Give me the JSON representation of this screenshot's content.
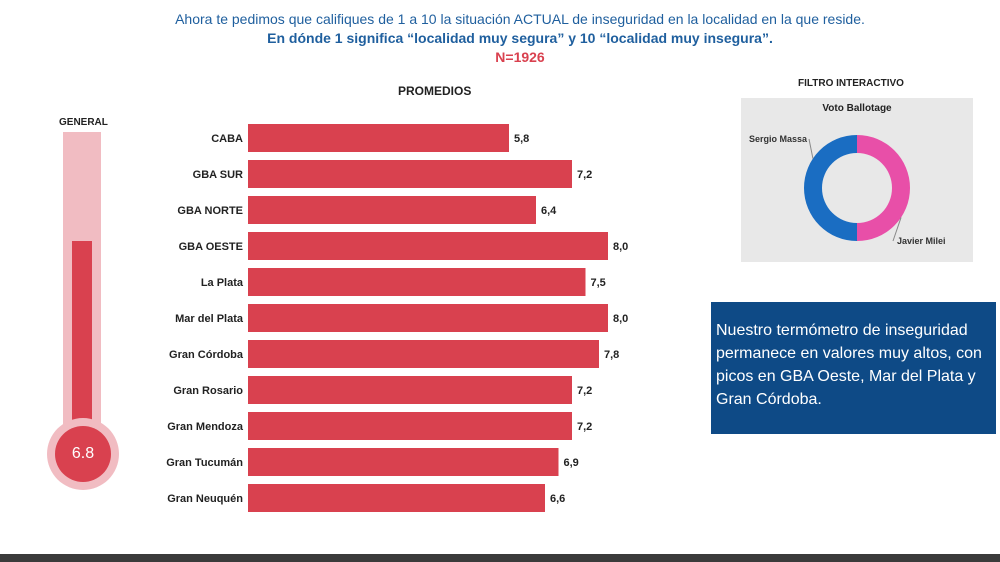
{
  "question": {
    "line_a": "Ahora te pedimos que califiques de 1 a 10 la situación ACTUAL de inseguridad en la localidad en la que reside.",
    "line_b": "En dónde 1 significa “localidad muy segura” y 10 “localidad muy insegura”.",
    "sample": "N=1926"
  },
  "colors": {
    "bar": "#d9414f",
    "thermo_light": "#f1bcc2",
    "massa": "#1a6dc2",
    "milei": "#e84fa8",
    "callout_bg": "#0e4a86"
  },
  "thermometer": {
    "title": "GENERAL",
    "value": 6.8,
    "value_label": "6.8",
    "scale_max": 10
  },
  "chart_data": {
    "type": "bar",
    "orientation": "horizontal",
    "title": "PROMEDIOS",
    "categories": [
      "CABA",
      "GBA SUR",
      "GBA NORTE",
      "GBA OESTE",
      "La Plata",
      "Mar del Plata",
      "Gran Córdoba",
      "Gran Rosario",
      "Gran Mendoza",
      "Gran Tucumán",
      "Gran Neuquén"
    ],
    "values": [
      5.8,
      7.2,
      6.4,
      8.0,
      7.5,
      8.0,
      7.8,
      7.2,
      7.2,
      6.9,
      6.6
    ],
    "value_labels": [
      "5,8",
      "7,2",
      "6,4",
      "8,0",
      "7,5",
      "8,0",
      "7,8",
      "7,2",
      "7,2",
      "6,9",
      "6,6"
    ],
    "xlim": [
      0,
      10
    ]
  },
  "filter": {
    "title": "FILTRO INTERACTIVO",
    "heading": "Voto Ballotage",
    "chart": {
      "type": "pie",
      "donut": true,
      "slices": [
        {
          "name": "Sergio Massa",
          "value": 50,
          "color": "#1a6dc2"
        },
        {
          "name": "Javier Milei",
          "value": 50,
          "color": "#e84fa8"
        }
      ]
    }
  },
  "callout": {
    "text": "Nuestro termómetro de inseguridad permanece en valores muy altos, con picos en GBA Oeste, Mar del Plata y Gran Córdoba."
  }
}
